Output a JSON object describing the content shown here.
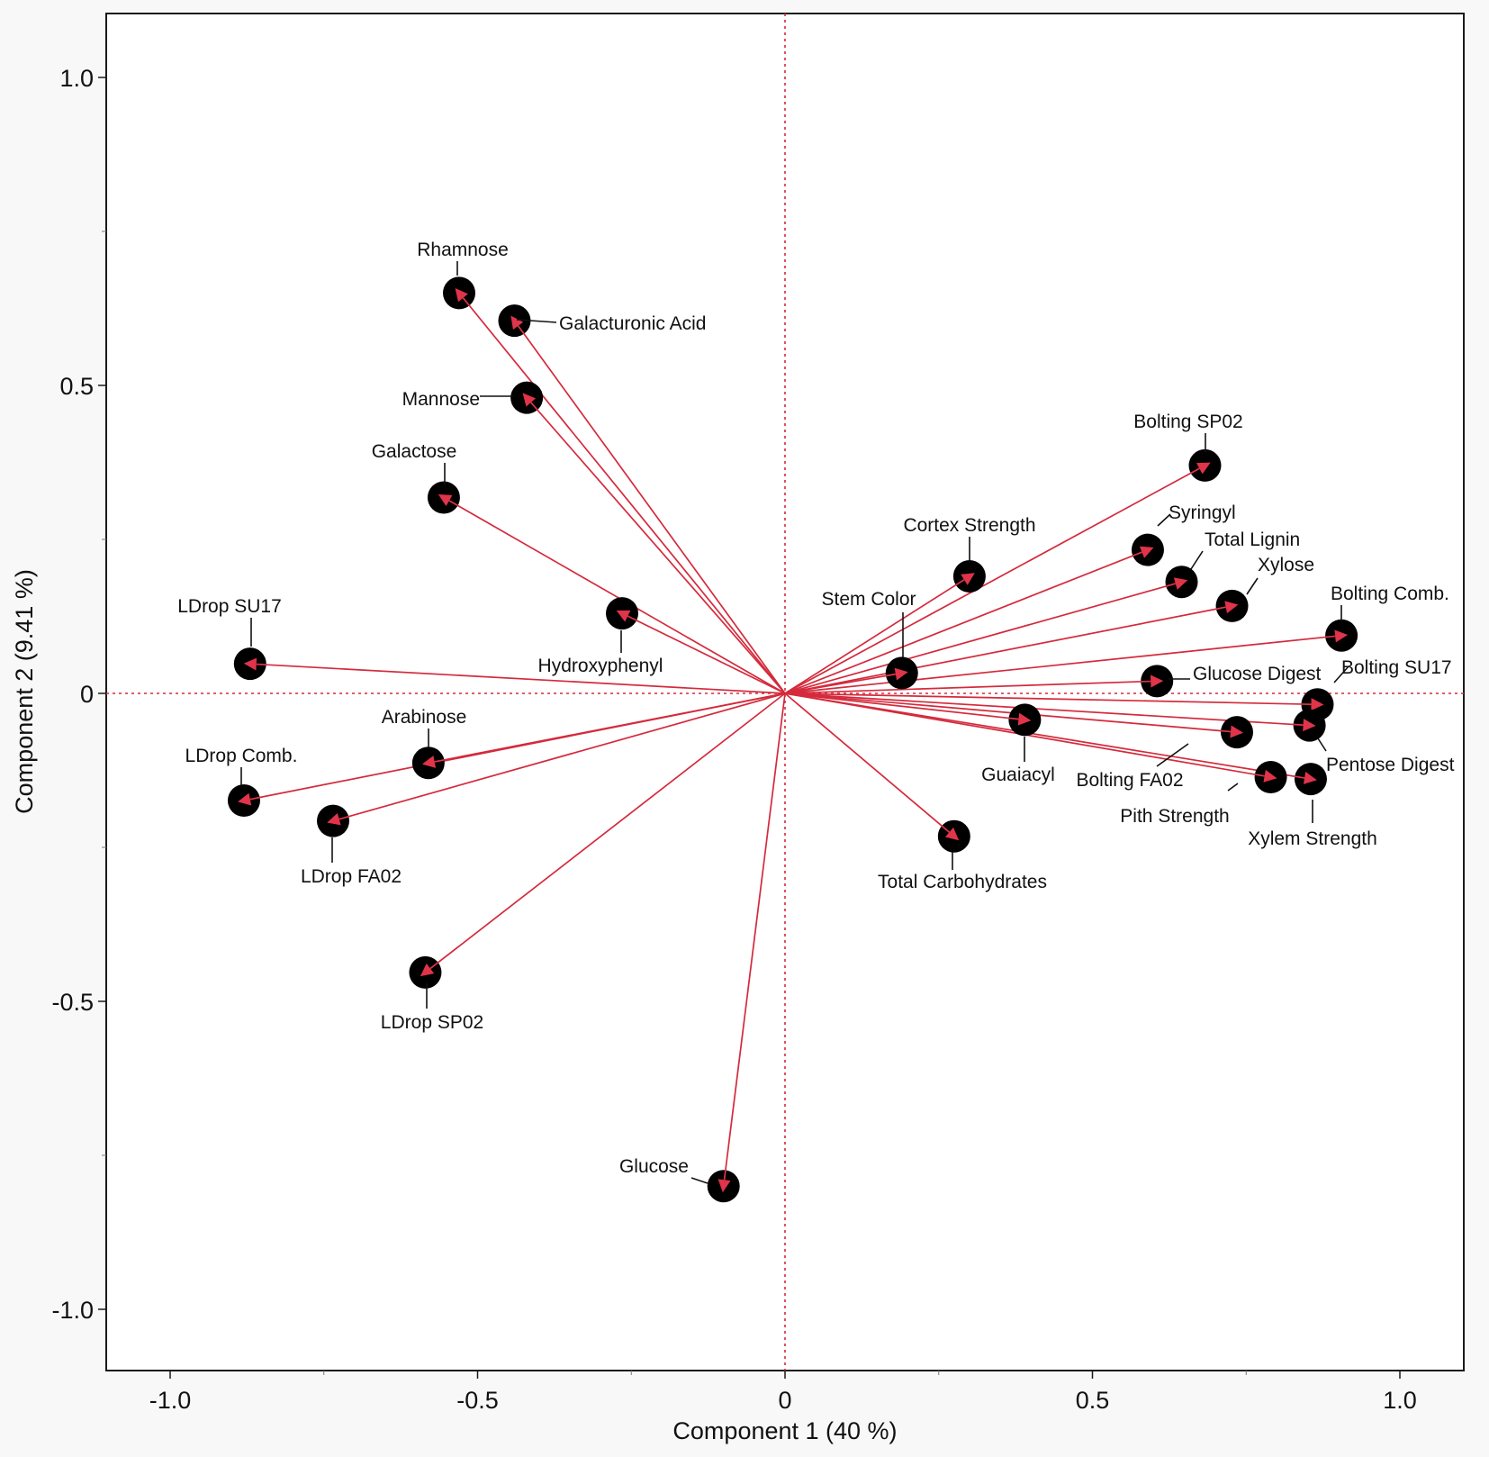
{
  "chart_data": {
    "type": "scatter",
    "subtype": "pca-loading-plot",
    "title": "",
    "xlabel": "Component 1  (40 %)",
    "ylabel": "Component 2  (9.41 %)",
    "xlim": [
      -1.1,
      1.1
    ],
    "ylim": [
      -1.1,
      1.1
    ],
    "xticks": [
      -1.0,
      -0.5,
      0,
      0.5,
      1.0
    ],
    "xtick_labels": [
      "-1.0",
      "-0.5",
      "0",
      "0.5",
      "1.0"
    ],
    "yticks": [
      1.0,
      0.5,
      0,
      -0.5,
      -1.0
    ],
    "ytick_labels": [
      "1.0",
      "0.5",
      "0",
      "-0.5",
      "-1.0"
    ],
    "grid": false,
    "reference_lines": {
      "x": 0,
      "y": 0,
      "style": "dotted",
      "color": "#d42a3c"
    },
    "arrow_color": "#d42a3c",
    "marker_color": "#000000",
    "points": [
      {
        "label": "Rhamnose",
        "x": -0.53,
        "y": 0.65
      },
      {
        "label": "Galacturonic Acid",
        "x": -0.44,
        "y": 0.605
      },
      {
        "label": "Mannose",
        "x": -0.42,
        "y": 0.48
      },
      {
        "label": "Galactose",
        "x": -0.555,
        "y": 0.318
      },
      {
        "label": "Hydroxyphenyl",
        "x": -0.265,
        "y": 0.13
      },
      {
        "label": "LDrop SU17",
        "x": -0.87,
        "y": 0.048
      },
      {
        "label": "Arabinose",
        "x": -0.58,
        "y": -0.113
      },
      {
        "label": "LDrop Comb.",
        "x": -0.88,
        "y": -0.174
      },
      {
        "label": "LDrop FA02",
        "x": -0.735,
        "y": -0.207
      },
      {
        "label": "LDrop SP02",
        "x": -0.585,
        "y": -0.453
      },
      {
        "label": "Glucose",
        "x": -0.1,
        "y": -0.8
      },
      {
        "label": "Total Carbohydrates",
        "x": 0.275,
        "y": -0.232
      },
      {
        "label": "Guaiacyl",
        "x": 0.39,
        "y": -0.043
      },
      {
        "label": "Stem Color",
        "x": 0.19,
        "y": 0.033
      },
      {
        "label": "Cortex Strength",
        "x": 0.3,
        "y": 0.19
      },
      {
        "label": "Bolting SP02",
        "x": 0.683,
        "y": 0.37
      },
      {
        "label": "Syringyl",
        "x": 0.59,
        "y": 0.233
      },
      {
        "label": "Total Lignin",
        "x": 0.645,
        "y": 0.181
      },
      {
        "label": "Xylose",
        "x": 0.727,
        "y": 0.142
      },
      {
        "label": "Bolting Comb.",
        "x": 0.905,
        "y": 0.094
      },
      {
        "label": "Glucose Digest",
        "x": 0.605,
        "y": 0.02
      },
      {
        "label": "Bolting SU17",
        "x": 0.866,
        "y": -0.018
      },
      {
        "label": "Pentose Digest",
        "x": 0.853,
        "y": -0.052
      },
      {
        "label": "Bolting FA02",
        "x": 0.735,
        "y": -0.063
      },
      {
        "label": "Pith Strength",
        "x": 0.79,
        "y": -0.136
      },
      {
        "label": "Xylem Strength",
        "x": 0.855,
        "y": -0.139
      }
    ]
  }
}
